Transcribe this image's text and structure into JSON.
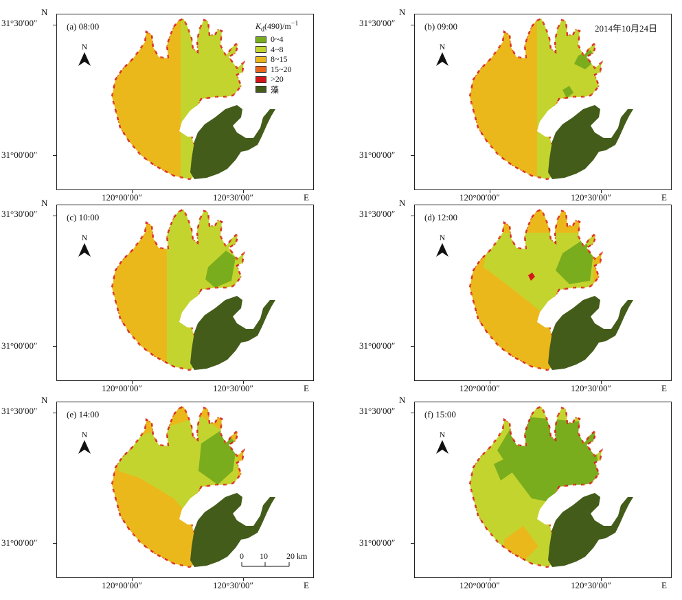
{
  "figure": {
    "date": "2014年10月24日",
    "north_arrow": "N",
    "axis": {
      "lat_top": "31°30′00″",
      "lat_mid": "31°00′00″",
      "lon_left": "120°00′00″",
      "lon_right": "120°30′00″",
      "north_corner": "N",
      "east_corner": "E"
    },
    "legend": {
      "title": "Kd(490)/m⁻¹",
      "items": [
        {
          "label": "0~4",
          "color": "#7aad1e"
        },
        {
          "label": "4~8",
          "color": "#c4d42e"
        },
        {
          "label": "8~15",
          "color": "#ebb81c"
        },
        {
          "label": "15~20",
          "color": "#e8641c"
        },
        {
          "label": ">20",
          "color": "#d4161a"
        },
        {
          "label": "藻",
          "color": "#435c1a"
        }
      ]
    },
    "scale_bar": {
      "labels": [
        "0",
        "10",
        "20 km"
      ]
    },
    "panels": [
      {
        "label": "(a) 08:00"
      },
      {
        "label": "(b) 09:00"
      },
      {
        "label": "(c) 10:00"
      },
      {
        "label": "(d) 12:00"
      },
      {
        "label": "(e) 14:00"
      },
      {
        "label": "(f) 15:00"
      }
    ]
  }
}
